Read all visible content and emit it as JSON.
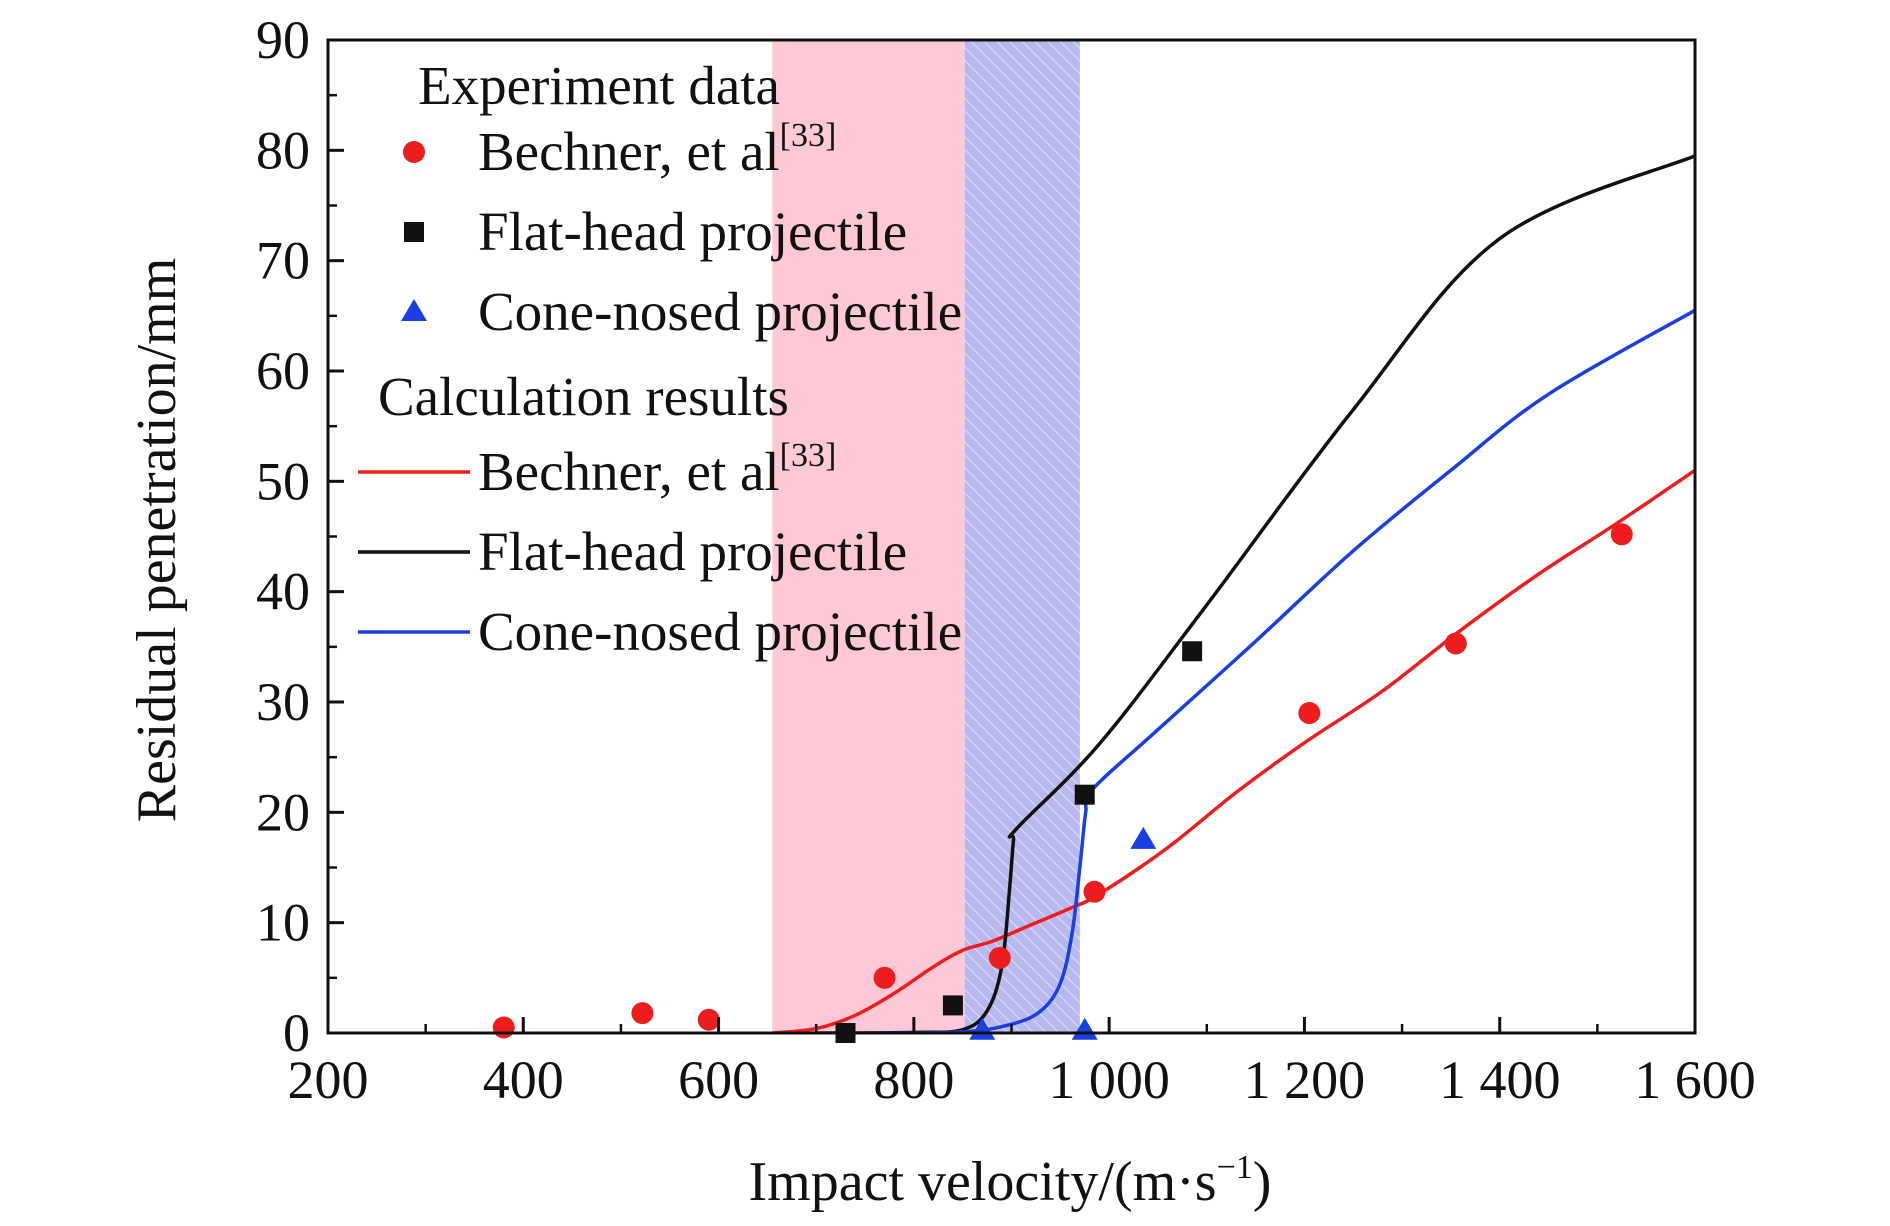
{
  "chart_data": {
    "type": "scatter",
    "xlabel": "Impact velocity/(m·s",
    "xlabel_sup": "−1",
    "xlabel_tail": ")",
    "ylabel": "Residual penetration/mm",
    "xlim": [
      200,
      1600
    ],
    "ylim": [
      0,
      90
    ],
    "xticks": [
      {
        "value": 200,
        "label": "200"
      },
      {
        "value": 400,
        "label": "400"
      },
      {
        "value": 600,
        "label": "600"
      },
      {
        "value": 800,
        "label": "800"
      },
      {
        "value": 1000,
        "label": "1 000"
      },
      {
        "value": 1200,
        "label": "1 200"
      },
      {
        "value": 1400,
        "label": "1 400"
      },
      {
        "value": 1600,
        "label": "1 600"
      }
    ],
    "yticks": [
      {
        "value": 0,
        "label": "0"
      },
      {
        "value": 10,
        "label": "10"
      },
      {
        "value": 20,
        "label": "20"
      },
      {
        "value": 30,
        "label": "30"
      },
      {
        "value": 40,
        "label": "40"
      },
      {
        "value": 50,
        "label": "50"
      },
      {
        "value": 60,
        "label": "60"
      },
      {
        "value": 70,
        "label": "70"
      },
      {
        "value": 80,
        "label": "80"
      },
      {
        "value": 90,
        "label": "90"
      }
    ],
    "grid": false,
    "legend_position": "top-left",
    "shaded_regions": [
      {
        "x": [
          655,
          852
        ],
        "color": "#ffc8d6",
        "pattern": "none"
      },
      {
        "x": [
          852,
          970
        ],
        "color": "#b8b8ee",
        "pattern": "hatch"
      }
    ],
    "legend": {
      "experiment_header": "Experiment data",
      "calculation_header": "Calculation results"
    },
    "scatter_series": [
      {
        "name": "Bechner, et al",
        "name_sup": "[33]",
        "marker": "circle",
        "color": "#ee1c1c",
        "points": [
          [
            380,
            0.5
          ],
          [
            522,
            1.8
          ],
          [
            590,
            1.2
          ],
          [
            770,
            5.0
          ],
          [
            888,
            6.8
          ],
          [
            985,
            12.8
          ],
          [
            1205,
            29.0
          ],
          [
            1355,
            35.3
          ],
          [
            1525,
            45.2
          ]
        ]
      },
      {
        "name": "Flat-head projectile",
        "marker": "square",
        "color": "#111111",
        "points": [
          [
            730,
            0.0
          ],
          [
            840,
            2.5
          ],
          [
            975,
            21.6
          ],
          [
            1085,
            34.6
          ]
        ]
      },
      {
        "name": "Cone-nosed projectile",
        "marker": "triangle",
        "color": "#1a3ee0",
        "points": [
          [
            870,
            0.2
          ],
          [
            975,
            0.2
          ],
          [
            1035,
            17.5
          ]
        ]
      }
    ],
    "line_series": [
      {
        "name": "Bechner, et al",
        "name_sup": "[33]",
        "color": "#ee1c1c",
        "points": [
          [
            655,
            0
          ],
          [
            700,
            0.4
          ],
          [
            740,
            1.6
          ],
          [
            780,
            3.6
          ],
          [
            820,
            6.0
          ],
          [
            850,
            7.5
          ],
          [
            880,
            8.3
          ],
          [
            920,
            9.8
          ],
          [
            960,
            11.3
          ],
          [
            990,
            12.6
          ],
          [
            1060,
            16.8
          ],
          [
            1130,
            21.8
          ],
          [
            1200,
            26.3
          ],
          [
            1280,
            31.0
          ],
          [
            1360,
            36.5
          ],
          [
            1440,
            41.6
          ],
          [
            1520,
            46.2
          ],
          [
            1600,
            51.0
          ]
        ]
      },
      {
        "name": "Flat-head projectile",
        "color": "#111111",
        "points": [
          [
            700,
            0
          ],
          [
            800,
            0.05
          ],
          [
            850,
            0.3
          ],
          [
            875,
            2.0
          ],
          [
            890,
            6.0
          ],
          [
            898,
            13.0
          ],
          [
            902,
            17.5
          ],
          [
            905,
            18.5
          ],
          [
            990,
            26.2
          ],
          [
            1100,
            38.8
          ],
          [
            1250,
            56.5
          ],
          [
            1400,
            72.0
          ],
          [
            1600,
            79.5
          ]
        ]
      },
      {
        "name": "Cone-nosed projectile",
        "color": "#1a3ee0",
        "points": [
          [
            750,
            0
          ],
          [
            850,
            0.1
          ],
          [
            900,
            0.8
          ],
          [
            930,
            2.0
          ],
          [
            950,
            4.5
          ],
          [
            962,
            9.0
          ],
          [
            970,
            15.0
          ],
          [
            976,
            20.0
          ],
          [
            982,
            22.0
          ],
          [
            1050,
            27.5
          ],
          [
            1150,
            35.5
          ],
          [
            1250,
            43.7
          ],
          [
            1350,
            51.0
          ],
          [
            1450,
            57.9
          ],
          [
            1600,
            65.5
          ]
        ]
      }
    ]
  }
}
